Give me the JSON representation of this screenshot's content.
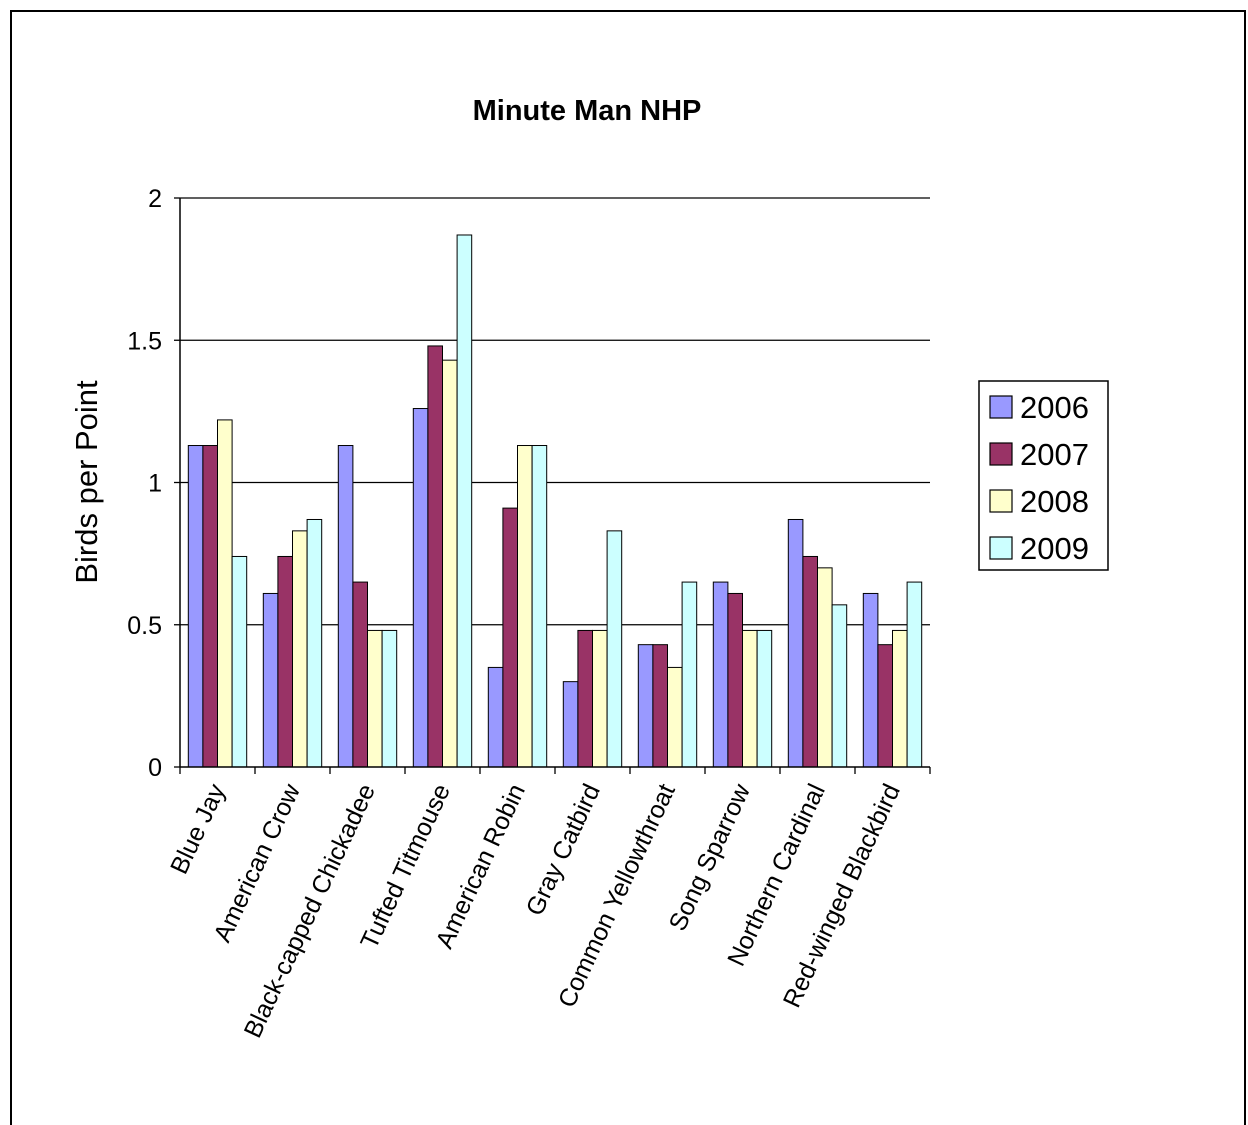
{
  "chart_data": {
    "type": "bar",
    "title": "Minute Man NHP",
    "xlabel": "",
    "ylabel": "Birds per Point",
    "ylim": [
      0,
      2
    ],
    "yticks": [
      "0",
      "0.5",
      "1",
      "1.5",
      "2"
    ],
    "grid": true,
    "legend_position": "right",
    "categories": [
      "Blue Jay",
      "American Crow",
      "Black-capped Chickadee",
      "Tufted Titmouse",
      "American Robin",
      "Gray Catbird",
      "Common Yellowthroat",
      "Song Sparrow",
      "Northern Cardinal",
      "Red-winged Blackbird"
    ],
    "series": [
      {
        "name": "2006",
        "color": "#9999ff",
        "values": [
          1.13,
          0.61,
          1.13,
          1.26,
          0.35,
          0.3,
          0.43,
          0.65,
          0.87,
          0.61
        ]
      },
      {
        "name": "2007",
        "color": "#993366",
        "values": [
          1.13,
          0.74,
          0.65,
          1.48,
          0.91,
          0.48,
          0.43,
          0.61,
          0.74,
          0.43
        ]
      },
      {
        "name": "2008",
        "color": "#ffffcc",
        "values": [
          1.22,
          0.83,
          0.48,
          1.43,
          1.13,
          0.48,
          0.35,
          0.48,
          0.7,
          0.48
        ]
      },
      {
        "name": "2009",
        "color": "#ccffff",
        "values": [
          0.74,
          0.87,
          0.48,
          1.87,
          1.13,
          0.83,
          0.65,
          0.48,
          0.57,
          0.65
        ]
      }
    ]
  }
}
